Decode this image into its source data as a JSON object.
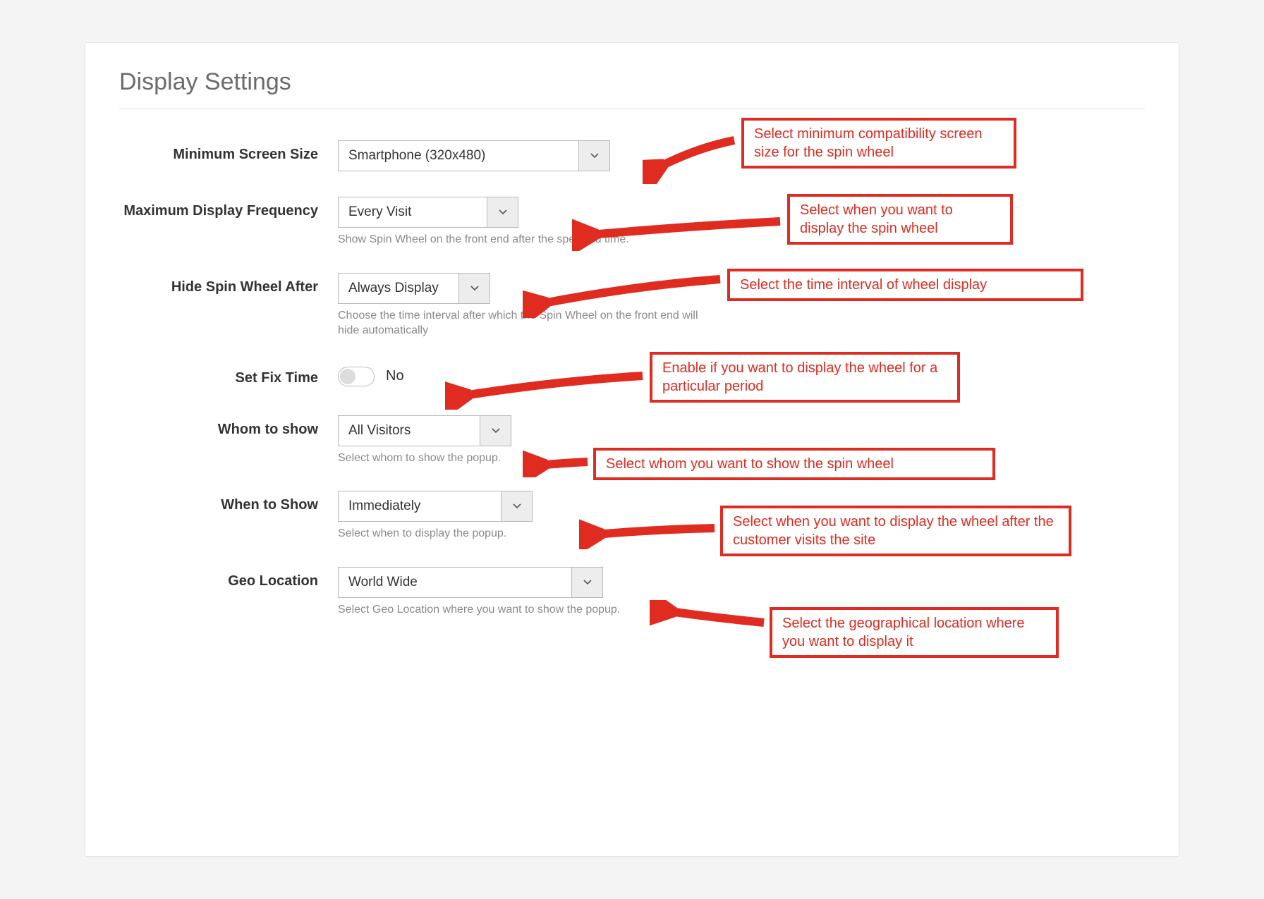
{
  "colors": {
    "callout_red": "#e02b20",
    "panel_bg": "#ffffff",
    "page_bg": "#f4f4f4",
    "border_gray": "#b8b8b8"
  },
  "section_title": "Display Settings",
  "fields": {
    "min_screen": {
      "label": "Minimum Screen Size",
      "value": "Smartphone (320x480)"
    },
    "max_freq": {
      "label": "Maximum Display Frequency",
      "value": "Every Visit",
      "help": "Show Spin Wheel on the front end after the specified time."
    },
    "hide_after": {
      "label": "Hide Spin Wheel After",
      "value": "Always Display",
      "help": "Choose the time interval after which the Spin Wheel on the front end will hide automatically"
    },
    "fix_time": {
      "label": "Set Fix Time",
      "value": "No"
    },
    "whom": {
      "label": "Whom to show",
      "value": "All Visitors",
      "help": "Select whom to show the popup."
    },
    "when": {
      "label": "When to Show",
      "value": "Immediately",
      "help": "Select when to display the popup."
    },
    "geo": {
      "label": "Geo Location",
      "value": "World Wide",
      "help": "Select Geo Location where you want to show the popup."
    }
  },
  "callouts": {
    "c1": "Select minimum compatibility screen size for the spin wheel",
    "c2": "Select when you want to display the spin wheel",
    "c3": "Select the time interval of wheel display",
    "c4": "Enable if you want to display the wheel for a particular period",
    "c5": "Select whom you want to show the spin wheel",
    "c6": "Select when you want to display the wheel after the customer visits the site",
    "c7": "Select the geographical location where you want to display it"
  },
  "select_widths": {
    "min_screen": 340,
    "max_freq": 210,
    "hide_after": 170,
    "whom": 200,
    "when": 230,
    "geo": 330
  }
}
